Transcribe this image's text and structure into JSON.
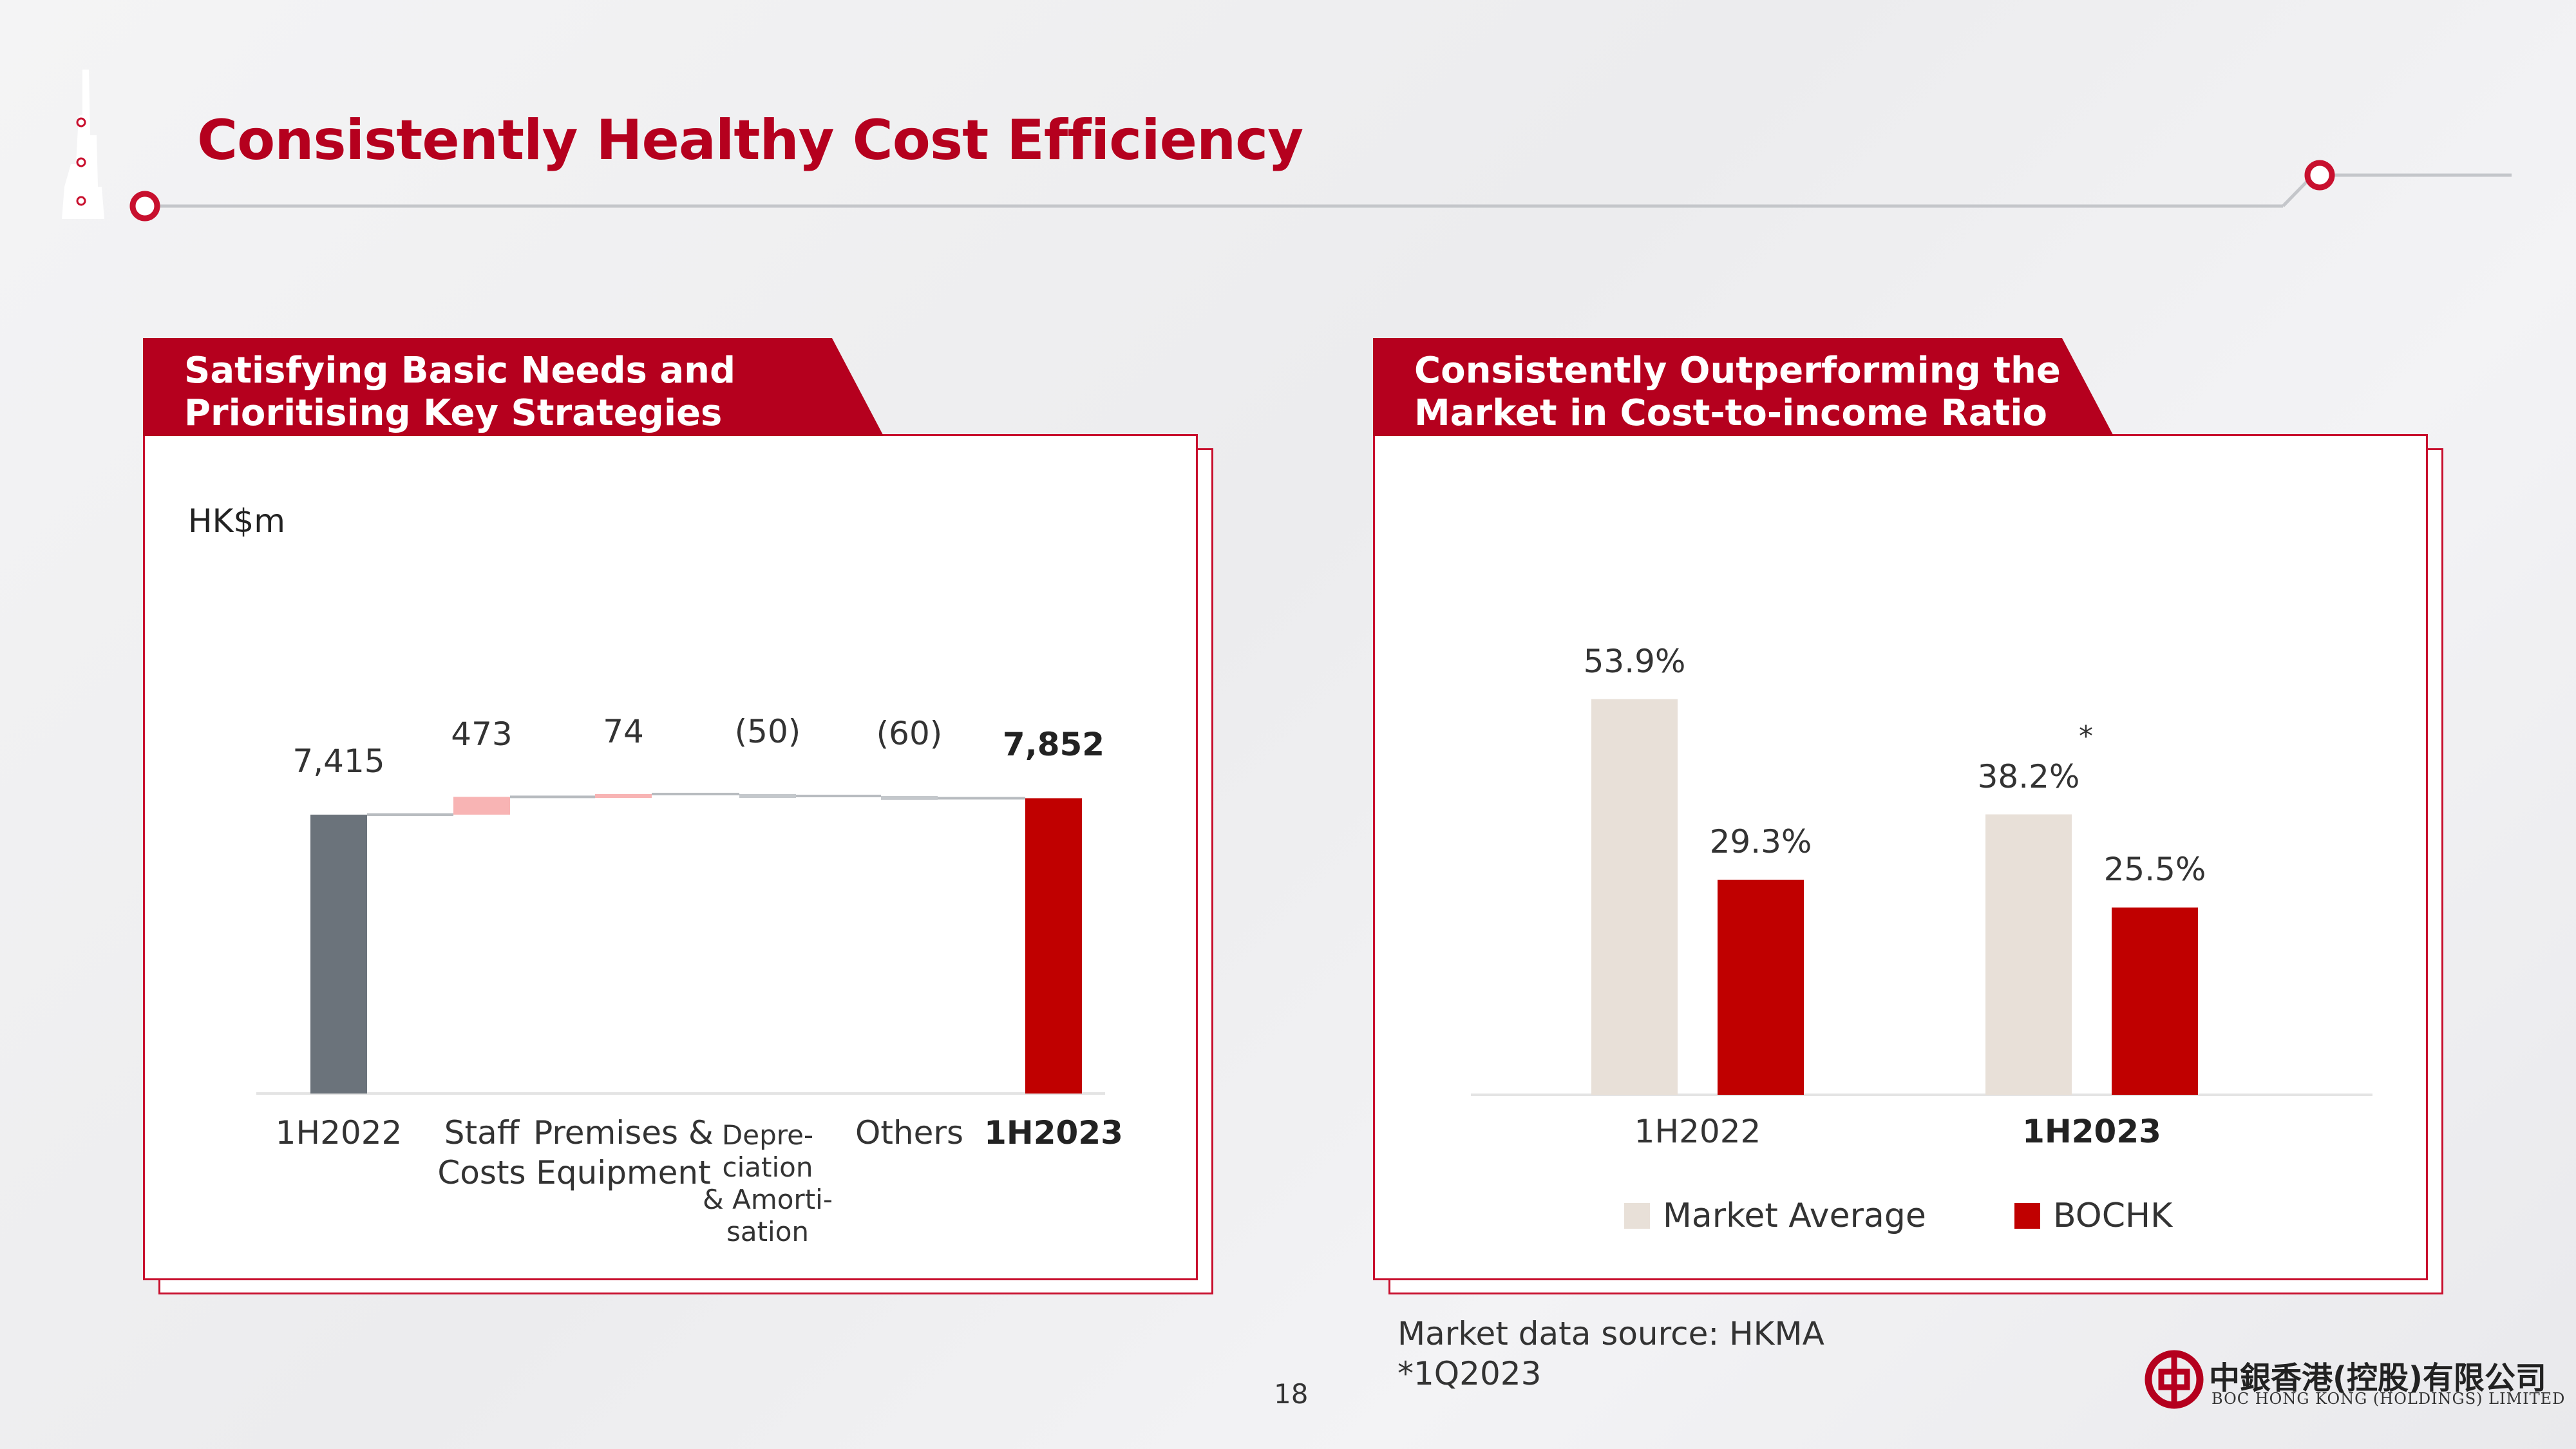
{
  "slide": {
    "title": "Consistently Healthy Cost Efficiency",
    "page_number": "18",
    "accent_color": "#b5001e"
  },
  "left_panel": {
    "heading_line1": "Satisfying Basic Needs and",
    "heading_line2": "Prioritising Key Strategies",
    "unit": "HK$m"
  },
  "right_panel": {
    "heading_line1": "Consistently Outperforming the",
    "heading_line2": "Market in Cost-to-income Ratio",
    "asterisk": "*"
  },
  "footnotes": {
    "source": "Market data source: HKMA",
    "note": "*1Q2023"
  },
  "logo": {
    "chinese_name": "中銀香港(控股)有限公司",
    "english_name": "BOC HONG KONG (HOLDINGS) LIMITED",
    "icon": "boc-logo-icon"
  },
  "chart_data": [
    {
      "type": "bar",
      "subtype": "waterfall",
      "unit": "HK$m",
      "categories": [
        "1H2022",
        "Staff Costs",
        "Premises & Equipment",
        "Depre-ciation & Amorti-sation",
        "Others",
        "1H2023"
      ],
      "category_lines": [
        [
          "1H2022"
        ],
        [
          "Staff",
          "Costs"
        ],
        [
          "Premises &",
          "Equipment"
        ],
        [
          "Depre-",
          "ciation",
          "& Amorti-",
          "sation"
        ],
        [
          "Others"
        ],
        [
          "1H2023"
        ]
      ],
      "values": [
        7415,
        473,
        74,
        -50,
        -60,
        7852
      ],
      "value_labels": [
        "7,415",
        "473",
        "74",
        "(50)",
        "(60)",
        "7,852"
      ],
      "kinds": [
        "total",
        "increase",
        "increase",
        "decrease",
        "decrease",
        "total"
      ],
      "colors": {
        "start_total": "#6b737b",
        "increase": "#f8b4b4",
        "decrease": "#c4c8cc",
        "end_total": "#c00000",
        "connector": "#b8bcc0"
      }
    },
    {
      "type": "bar",
      "unit": "%",
      "categories": [
        "1H2022",
        "1H2023"
      ],
      "series": [
        {
          "name": "Market Average",
          "values": [
            53.9,
            38.2
          ],
          "labels": [
            "53.9%",
            "38.2%"
          ],
          "color": "#e8e0d8"
        },
        {
          "name": "BOCHK",
          "values": [
            29.3,
            25.5
          ],
          "labels": [
            "29.3%",
            "25.5%"
          ],
          "color": "#c00000"
        }
      ],
      "legend": "bottom"
    }
  ]
}
